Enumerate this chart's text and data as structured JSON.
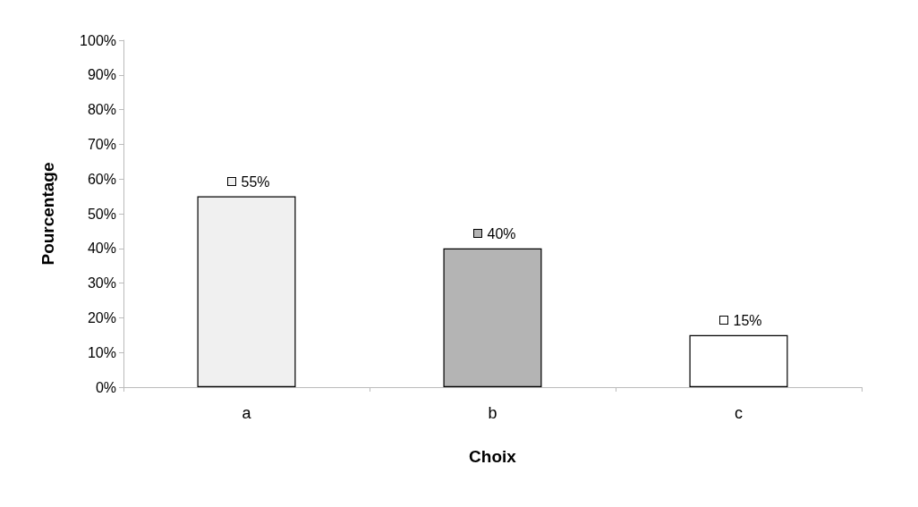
{
  "chart_data": {
    "type": "bar",
    "xlabel": "Choix",
    "ylabel": "Pourcentage",
    "categories": [
      "a",
      "b",
      "c"
    ],
    "values": [
      55,
      40,
      15
    ],
    "colors": [
      "#f0f0f0",
      "#b4b4b4",
      "#ffffff"
    ],
    "value_labels": [
      "55%",
      "40%",
      "15%"
    ],
    "ylim": [
      0,
      100
    ],
    "yticks": [
      {
        "value": 0,
        "label": "0%"
      },
      {
        "value": 10,
        "label": "10%"
      },
      {
        "value": 20,
        "label": "20%"
      },
      {
        "value": 30,
        "label": "30%"
      },
      {
        "value": 40,
        "label": "40%"
      },
      {
        "value": 50,
        "label": "50%"
      },
      {
        "value": 60,
        "label": "60%"
      },
      {
        "value": 70,
        "label": "70%"
      },
      {
        "value": 80,
        "label": "80%"
      },
      {
        "value": 90,
        "label": "90%"
      },
      {
        "value": 100,
        "label": "100%"
      }
    ],
    "grid": false
  }
}
